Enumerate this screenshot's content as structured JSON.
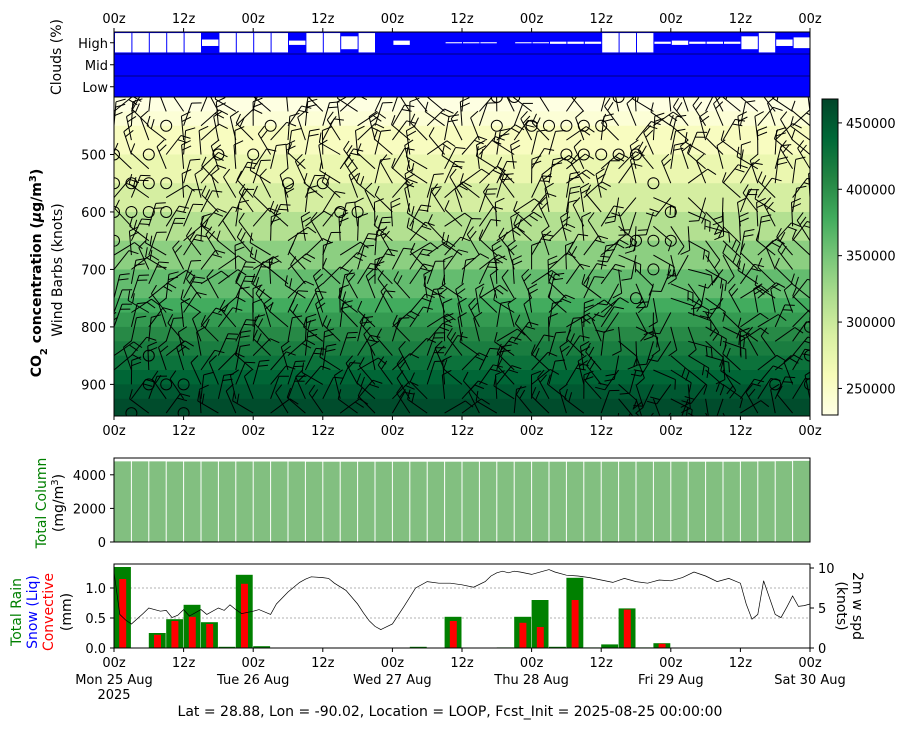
{
  "footer": "Lat = 28.88, Lon = -90.02, Location = LOOP, Fcst_Init = 2025-08-25 00:00:00",
  "colors": {
    "cloud_bg": "#0000ff",
    "cloud_fill": "#ffffff",
    "column_bar": "#82bf80",
    "rain": "#008000",
    "convective": "#ff0000",
    "snow": "#0000ff",
    "wind_line": "#000000",
    "cmap_low": "#ffffe5",
    "cmap_high": "#004529"
  },
  "time_axis": {
    "range_hours": [
      0,
      120
    ],
    "top_tick_labels": [
      "00z",
      "12z",
      "00z",
      "12z",
      "00z",
      "12z",
      "00z",
      "12z",
      "00z",
      "12z",
      "00z"
    ],
    "bottom_tick_labels": [
      "00z",
      "12z",
      "00z",
      "12z",
      "00z",
      "12z",
      "00z",
      "12z",
      "00z",
      "12z",
      "00z"
    ],
    "date_labels": [
      "Mon 25 Aug\n2025",
      "Tue 26 Aug",
      "Wed 27 Aug",
      "Thu 28 Aug",
      "Fri 29 Aug",
      "Sat 30 Aug"
    ]
  },
  "chart_data": [
    {
      "type": "heatmap",
      "panel": "clouds",
      "ylabel": "Clouds (%)",
      "levels": [
        "High",
        "Mid",
        "Low"
      ],
      "x_hours": [
        0,
        3,
        6,
        9,
        12,
        15,
        18,
        21,
        24,
        27,
        30,
        33,
        36,
        39,
        42,
        45,
        48,
        51,
        54,
        57,
        60,
        63,
        66,
        69,
        72,
        75,
        78,
        81,
        84,
        87,
        90,
        93,
        96,
        99,
        102,
        105,
        108,
        111,
        114,
        117
      ],
      "high_cover_pct": [
        90,
        90,
        90,
        90,
        90,
        30,
        90,
        90,
        90,
        90,
        20,
        90,
        90,
        60,
        90,
        0,
        20,
        0,
        0,
        5,
        5,
        5,
        0,
        5,
        5,
        10,
        10,
        10,
        90,
        90,
        90,
        10,
        20,
        10,
        10,
        10,
        60,
        90,
        30,
        50
      ],
      "mid_cover_pct": 0,
      "low_cover_pct": 0
    },
    {
      "type": "heatmap",
      "panel": "co2_profile",
      "ylabel": "CO2 concentration (μg/m3)",
      "ylabel2": "Wind Barbs (knots)",
      "y_axis": "pressure (hPa)",
      "ylim": [
        955,
        400
      ],
      "ytick_labels": [
        "500",
        "600",
        "700",
        "800",
        "900"
      ],
      "yticks": [
        500,
        600,
        700,
        800,
        900
      ],
      "colorbar": {
        "min": 230000,
        "max": 468000,
        "tick_labels": [
          "250000",
          "300000",
          "350000",
          "400000",
          "450000"
        ],
        "ticks": [
          250000,
          300000,
          350000,
          400000,
          450000
        ]
      },
      "layers": [
        {
          "p_top": 400,
          "p_bot": 425,
          "value": 232000
        },
        {
          "p_top": 425,
          "p_bot": 450,
          "value": 240000
        },
        {
          "p_top": 450,
          "p_bot": 500,
          "value": 255000
        },
        {
          "p_top": 500,
          "p_bot": 550,
          "value": 272000
        },
        {
          "p_top": 550,
          "p_bot": 600,
          "value": 292000
        },
        {
          "p_top": 600,
          "p_bot": 650,
          "value": 315000
        },
        {
          "p_top": 650,
          "p_bot": 700,
          "value": 338000
        },
        {
          "p_top": 700,
          "p_bot": 750,
          "value": 360000
        },
        {
          "p_top": 750,
          "p_bot": 775,
          "value": 378000
        },
        {
          "p_top": 775,
          "p_bot": 800,
          "value": 392000
        },
        {
          "p_top": 800,
          "p_bot": 825,
          "value": 405000
        },
        {
          "p_top": 825,
          "p_bot": 850,
          "value": 416000
        },
        {
          "p_top": 850,
          "p_bot": 875,
          "value": 428000
        },
        {
          "p_top": 875,
          "p_bot": 900,
          "value": 440000
        },
        {
          "p_top": 900,
          "p_bot": 925,
          "value": 452000
        },
        {
          "p_top": 925,
          "p_bot": 955,
          "value": 462000
        }
      ],
      "calm_markers": [
        {
          "h": 9,
          "p": 450
        },
        {
          "h": 27,
          "p": 450
        },
        {
          "h": 66,
          "p": 400
        },
        {
          "h": 69,
          "p": 400
        },
        {
          "h": 87,
          "p": 400
        },
        {
          "h": 66,
          "p": 450
        },
        {
          "h": 72,
          "p": 450
        },
        {
          "h": 75,
          "p": 450
        },
        {
          "h": 78,
          "p": 450
        },
        {
          "h": 81,
          "p": 450
        },
        {
          "h": 84,
          "p": 450
        },
        {
          "h": 0,
          "p": 500
        },
        {
          "h": 6,
          "p": 500
        },
        {
          "h": 18,
          "p": 500
        },
        {
          "h": 24,
          "p": 500
        },
        {
          "h": 78,
          "p": 500
        },
        {
          "h": 81,
          "p": 500
        },
        {
          "h": 84,
          "p": 500
        },
        {
          "h": 87,
          "p": 500
        },
        {
          "h": 90,
          "p": 500
        },
        {
          "h": 0,
          "p": 550
        },
        {
          "h": 3,
          "p": 550
        },
        {
          "h": 6,
          "p": 550
        },
        {
          "h": 9,
          "p": 550
        },
        {
          "h": 30,
          "p": 550
        },
        {
          "h": 36,
          "p": 550
        },
        {
          "h": 93,
          "p": 550
        },
        {
          "h": 0,
          "p": 600
        },
        {
          "h": 3,
          "p": 600
        },
        {
          "h": 6,
          "p": 600
        },
        {
          "h": 9,
          "p": 600
        },
        {
          "h": 39,
          "p": 600
        },
        {
          "h": 42,
          "p": 600
        },
        {
          "h": 96,
          "p": 600
        },
        {
          "h": 0,
          "p": 650
        },
        {
          "h": 90,
          "p": 650
        },
        {
          "h": 93,
          "p": 650
        },
        {
          "h": 96,
          "p": 650
        },
        {
          "h": 93,
          "p": 700
        },
        {
          "h": 90,
          "p": 750
        },
        {
          "h": 6,
          "p": 850
        },
        {
          "h": 120,
          "p": 800
        },
        {
          "h": 120,
          "p": 850
        },
        {
          "h": 6,
          "p": 900
        },
        {
          "h": 9,
          "p": 900
        },
        {
          "h": 12,
          "p": 900
        },
        {
          "h": 114,
          "p": 900
        },
        {
          "h": 120,
          "p": 900
        },
        {
          "h": 3,
          "p": 950
        },
        {
          "h": 12,
          "p": 950
        }
      ]
    },
    {
      "type": "bar",
      "panel": "total_column",
      "ylabel": "Total Column",
      "ylabel2": "(mg/m3)",
      "ylim": [
        0,
        5000
      ],
      "ytick_labels": [
        "0",
        "2000",
        "4000"
      ],
      "yticks": [
        0,
        2000,
        4000
      ],
      "x_hours": [
        0,
        3,
        6,
        9,
        12,
        15,
        18,
        21,
        24,
        27,
        30,
        33,
        36,
        39,
        42,
        45,
        48,
        51,
        54,
        57,
        60,
        63,
        66,
        69,
        72,
        75,
        78,
        81,
        84,
        87,
        90,
        93,
        96,
        99,
        102,
        105,
        108,
        111,
        114,
        117
      ],
      "values": [
        4800,
        4800,
        4800,
        4790,
        4790,
        4790,
        4790,
        4790,
        4790,
        4790,
        4790,
        4780,
        4780,
        4780,
        4780,
        4780,
        4780,
        4780,
        4780,
        4780,
        4780,
        4780,
        4780,
        4780,
        4780,
        4780,
        4780,
        4780,
        4780,
        4780,
        4780,
        4780,
        4780,
        4780,
        4780,
        4780,
        4790,
        4800,
        4810,
        4830
      ]
    },
    {
      "type": "bar",
      "panel": "precip",
      "ylabel_parts": [
        "Total Rain",
        "Snow (Liq)",
        "Convective",
        "(mm)"
      ],
      "ylabel_right": "2m w spd\n(knots)",
      "ylim": [
        0,
        1.4
      ],
      "ytick_labels": [
        "0.0",
        "0.5",
        "1.0"
      ],
      "yticks": [
        0,
        0.5,
        1.0
      ],
      "y2lim": [
        0,
        10.5
      ],
      "y2tick_labels": [
        "0",
        "5",
        "10"
      ],
      "y2ticks": [
        0,
        5,
        10
      ],
      "x_hours": [
        0,
        3,
        6,
        9,
        12,
        15,
        18,
        21,
        24,
        27,
        30,
        33,
        36,
        39,
        42,
        45,
        48,
        51,
        54,
        57,
        60,
        63,
        66,
        69,
        72,
        75,
        78,
        81,
        84,
        87,
        90,
        93,
        96,
        99,
        102,
        105,
        108,
        111,
        114,
        117
      ],
      "total_rain": [
        1.35,
        0,
        0.25,
        0.48,
        0.72,
        0.43,
        0.02,
        1.22,
        0.03,
        0,
        0,
        0,
        0,
        0,
        0,
        0,
        0,
        0.02,
        0,
        0.52,
        0,
        0,
        0.01,
        0.52,
        0.8,
        0.02,
        1.17,
        0.01,
        0.06,
        0.66,
        0.01,
        0.08,
        0,
        0,
        0,
        0,
        0,
        0,
        0,
        0
      ],
      "convective": [
        1.15,
        0,
        0.22,
        0.45,
        0.52,
        0.4,
        0,
        1.07,
        0,
        0,
        0,
        0,
        0,
        0,
        0,
        0,
        0,
        0,
        0,
        0.45,
        0,
        0,
        0,
        0.42,
        0.35,
        0,
        0.8,
        0,
        0,
        0.64,
        0,
        0.07,
        0,
        0,
        0,
        0,
        0,
        0,
        0,
        0
      ],
      "snow": [
        0,
        0,
        0,
        0,
        0,
        0,
        0,
        0,
        0,
        0,
        0,
        0,
        0,
        0,
        0,
        0,
        0,
        0,
        0,
        0,
        0,
        0,
        0,
        0,
        0,
        0,
        0,
        0,
        0,
        0,
        0,
        0,
        0,
        0,
        0,
        0,
        0,
        0,
        0,
        0
      ],
      "wind_speed_x": [
        0,
        1,
        2,
        3,
        5,
        6,
        8,
        9,
        10,
        11,
        12,
        13,
        15,
        16,
        18,
        19,
        20,
        21,
        22,
        24,
        25,
        27,
        28,
        30,
        32,
        33,
        34,
        36,
        37,
        38,
        40,
        42,
        43,
        44,
        45,
        46,
        48,
        50,
        52,
        54,
        56,
        58,
        60,
        62,
        64,
        65,
        66,
        67,
        68,
        69,
        70,
        72,
        74,
        75,
        76,
        78,
        80,
        82,
        84,
        86,
        88,
        90,
        92,
        93,
        94,
        96,
        98,
        100,
        102,
        104,
        106,
        108,
        109,
        110,
        111,
        112,
        114,
        115,
        116,
        117,
        118,
        119,
        120
      ],
      "wind_speed": [
        9.5,
        4.2,
        3.5,
        3.0,
        4.3,
        5.0,
        4.6,
        4.7,
        3.8,
        4.1,
        4.8,
        4.0,
        4.8,
        4.2,
        5.0,
        4.7,
        5.4,
        4.8,
        4.3,
        4.6,
        4.8,
        4.2,
        5.5,
        7.0,
        8.2,
        8.6,
        8.9,
        8.8,
        8.7,
        8.1,
        7.2,
        5.5,
        4.4,
        3.4,
        2.7,
        2.3,
        3.0,
        5.2,
        7.5,
        8.3,
        8.1,
        8.1,
        7.9,
        7.6,
        8.3,
        9.0,
        9.4,
        9.6,
        9.4,
        9.6,
        9.5,
        9.2,
        9.6,
        9.8,
        9.5,
        9.1,
        9.0,
        8.8,
        8.5,
        8.2,
        8.7,
        8.3,
        8.1,
        8.3,
        8.5,
        8.4,
        8.8,
        9.5,
        9.0,
        8.3,
        8.7,
        8.1,
        5.5,
        3.6,
        4.2,
        8.4,
        4.2,
        3.8,
        5.1,
        6.5,
        5.2,
        5.3,
        5.5
      ]
    }
  ]
}
